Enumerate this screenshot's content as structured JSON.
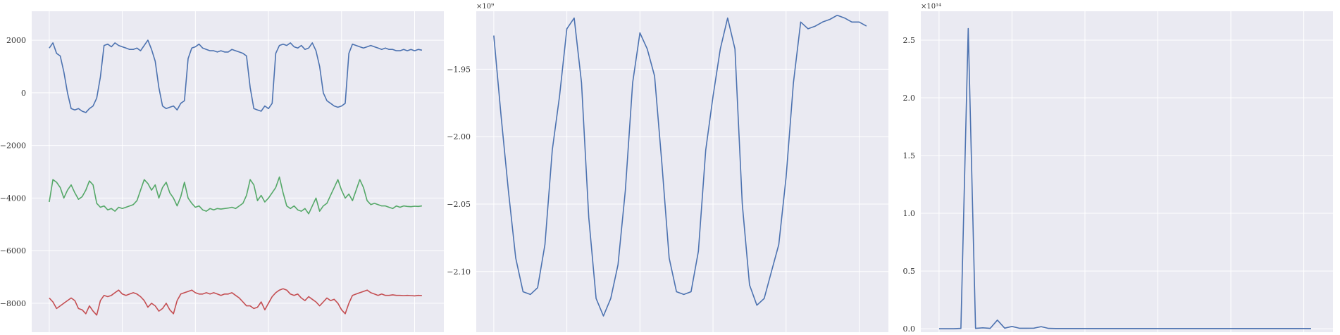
{
  "style": {
    "background": "#ffffff",
    "axes_face": "#eaeaf2",
    "grid_color": "#ffffff",
    "colors": {
      "blue": "#4c72b0",
      "green": "#55a868",
      "red": "#c44e52"
    }
  },
  "chart_data": [
    {
      "type": "line",
      "grid": true,
      "xlim": [
        -24,
        540
      ],
      "ylim": [
        -9100,
        3100
      ],
      "xticks": [
        0,
        100,
        200,
        300,
        400,
        500
      ],
      "yticks": [
        -8000,
        -6000,
        -4000,
        -2000,
        0,
        2000
      ],
      "ytick_labels": [
        "−8000",
        "−6000",
        "−4000",
        "−2000",
        "0",
        "2000"
      ],
      "series": [
        {
          "color": "#4c72b0",
          "x": [
            0,
            5,
            10,
            15,
            20,
            25,
            30,
            35,
            40,
            45,
            50,
            55,
            60,
            65,
            70,
            75,
            80,
            85,
            90,
            95,
            100,
            105,
            110,
            115,
            120,
            125,
            130,
            135,
            140,
            145,
            150,
            155,
            160,
            165,
            170,
            175,
            180,
            185,
            190,
            195,
            200,
            205,
            210,
            215,
            220,
            225,
            230,
            235,
            240,
            245,
            250,
            255,
            260,
            265,
            270,
            275,
            280,
            285,
            290,
            295,
            300,
            305,
            310,
            315,
            320,
            325,
            330,
            335,
            340,
            345,
            350,
            355,
            360,
            365,
            370,
            375,
            380,
            385,
            390,
            395,
            400,
            405,
            410,
            415,
            420,
            425,
            430,
            435,
            440,
            445,
            450,
            455,
            460,
            465,
            470,
            475,
            480,
            485,
            490,
            495,
            500,
            505,
            510
          ],
          "values": [
            1700,
            1900,
            1500,
            1400,
            800,
            0,
            -600,
            -650,
            -600,
            -700,
            -750,
            -600,
            -500,
            -200,
            600,
            1800,
            1850,
            1750,
            1900,
            1800,
            1750,
            1700,
            1650,
            1650,
            1700,
            1600,
            1800,
            2000,
            1650,
            1200,
            200,
            -500,
            -600,
            -550,
            -500,
            -650,
            -400,
            -300,
            1300,
            1700,
            1750,
            1850,
            1700,
            1650,
            1600,
            1600,
            1550,
            1600,
            1550,
            1550,
            1650,
            1600,
            1550,
            1500,
            1400,
            200,
            -600,
            -650,
            -700,
            -500,
            -600,
            -400,
            1500,
            1800,
            1850,
            1800,
            1900,
            1750,
            1700,
            1800,
            1650,
            1700,
            1900,
            1600,
            1000,
            0,
            -300,
            -400,
            -500,
            -550,
            -500,
            -400,
            1500,
            1850,
            1800,
            1750,
            1700,
            1750,
            1800,
            1750,
            1700,
            1650,
            1700,
            1650,
            1650,
            1600,
            1600,
            1650,
            1600,
            1650,
            1600,
            1650,
            1620
          ]
        },
        {
          "color": "#55a868",
          "x": [
            0,
            5,
            10,
            15,
            20,
            25,
            30,
            35,
            40,
            45,
            50,
            55,
            60,
            65,
            70,
            75,
            80,
            85,
            90,
            95,
            100,
            105,
            110,
            115,
            120,
            125,
            130,
            135,
            140,
            145,
            150,
            155,
            160,
            165,
            170,
            175,
            180,
            185,
            190,
            195,
            200,
            205,
            210,
            215,
            220,
            225,
            230,
            235,
            240,
            245,
            250,
            255,
            260,
            265,
            270,
            275,
            280,
            285,
            290,
            295,
            300,
            305,
            310,
            315,
            320,
            325,
            330,
            335,
            340,
            345,
            350,
            355,
            360,
            365,
            370,
            375,
            380,
            385,
            390,
            395,
            400,
            405,
            410,
            415,
            420,
            425,
            430,
            435,
            440,
            445,
            450,
            455,
            460,
            465,
            470,
            475,
            480,
            485,
            490,
            495,
            500,
            505,
            510
          ],
          "values": [
            -4150,
            -3300,
            -3400,
            -3600,
            -4000,
            -3700,
            -3500,
            -3800,
            -4050,
            -3950,
            -3700,
            -3350,
            -3500,
            -4200,
            -4350,
            -4300,
            -4450,
            -4400,
            -4500,
            -4350,
            -4400,
            -4350,
            -4300,
            -4250,
            -4100,
            -3700,
            -3300,
            -3450,
            -3700,
            -3500,
            -4000,
            -3600,
            -3400,
            -3800,
            -4000,
            -4300,
            -3950,
            -3400,
            -4000,
            -4200,
            -4350,
            -4300,
            -4450,
            -4500,
            -4400,
            -4450,
            -4400,
            -4420,
            -4400,
            -4380,
            -4350,
            -4400,
            -4300,
            -4200,
            -3900,
            -3300,
            -3500,
            -4100,
            -3900,
            -4150,
            -4000,
            -3800,
            -3600,
            -3200,
            -3800,
            -4300,
            -4400,
            -4300,
            -4450,
            -4500,
            -4400,
            -4600,
            -4300,
            -4000,
            -4500,
            -4300,
            -4200,
            -3900,
            -3600,
            -3300,
            -3700,
            -4000,
            -3850,
            -4100,
            -3700,
            -3300,
            -3600,
            -4100,
            -4250,
            -4200,
            -4250,
            -4300,
            -4300,
            -4350,
            -4400,
            -4300,
            -4350,
            -4300,
            -4320,
            -4330,
            -4310,
            -4320,
            -4300
          ]
        },
        {
          "color": "#c44e52",
          "x": [
            0,
            5,
            10,
            15,
            20,
            25,
            30,
            35,
            40,
            45,
            50,
            55,
            60,
            65,
            70,
            75,
            80,
            85,
            90,
            95,
            100,
            105,
            110,
            115,
            120,
            125,
            130,
            135,
            140,
            145,
            150,
            155,
            160,
            165,
            170,
            175,
            180,
            185,
            190,
            195,
            200,
            205,
            210,
            215,
            220,
            225,
            230,
            235,
            240,
            245,
            250,
            255,
            260,
            265,
            270,
            275,
            280,
            285,
            290,
            295,
            300,
            305,
            310,
            315,
            320,
            325,
            330,
            335,
            340,
            345,
            350,
            355,
            360,
            365,
            370,
            375,
            380,
            385,
            390,
            395,
            400,
            405,
            410,
            415,
            420,
            425,
            430,
            435,
            440,
            445,
            450,
            455,
            460,
            465,
            470,
            475,
            480,
            485,
            490,
            495,
            500,
            505,
            510
          ],
          "values": [
            -7800,
            -7950,
            -8200,
            -8100,
            -8000,
            -7900,
            -7800,
            -7900,
            -8200,
            -8250,
            -8400,
            -8100,
            -8300,
            -8450,
            -7900,
            -7700,
            -7750,
            -7700,
            -7600,
            -7500,
            -7650,
            -7700,
            -7650,
            -7600,
            -7650,
            -7750,
            -7900,
            -8150,
            -8000,
            -8100,
            -8300,
            -8200,
            -8000,
            -8250,
            -8400,
            -7900,
            -7650,
            -7600,
            -7550,
            -7500,
            -7600,
            -7650,
            -7650,
            -7600,
            -7650,
            -7600,
            -7650,
            -7700,
            -7650,
            -7650,
            -7600,
            -7700,
            -7800,
            -7950,
            -8100,
            -8100,
            -8200,
            -8150,
            -7950,
            -8250,
            -8000,
            -7750,
            -7600,
            -7500,
            -7450,
            -7500,
            -7650,
            -7700,
            -7650,
            -7800,
            -7900,
            -7750,
            -7850,
            -7950,
            -8100,
            -7950,
            -7800,
            -7900,
            -7850,
            -8000,
            -8250,
            -8400,
            -8000,
            -7700,
            -7650,
            -7600,
            -7550,
            -7500,
            -7600,
            -7650,
            -7700,
            -7650,
            -7700,
            -7700,
            -7680,
            -7700,
            -7700,
            -7710,
            -7700,
            -7710,
            -7720,
            -7700,
            -7710
          ]
        }
      ]
    },
    {
      "type": "line",
      "grid": true,
      "offset_text": "×10⁹",
      "xlim": [
        -24,
        540
      ],
      "ylim": [
        -2.145,
        -1.907
      ],
      "xticks": [
        0,
        100,
        200,
        300,
        400,
        500
      ],
      "yticks": [
        -2.1,
        -2.05,
        -2.0,
        -1.95
      ],
      "ytick_labels": [
        "−2.10",
        "−2.05",
        "−2.00",
        "−1.95"
      ],
      "series": [
        {
          "color": "#4c72b0",
          "x": [
            0,
            10,
            20,
            30,
            40,
            50,
            60,
            70,
            80,
            90,
            100,
            110,
            120,
            130,
            140,
            150,
            160,
            170,
            180,
            190,
            200,
            210,
            220,
            230,
            240,
            250,
            260,
            270,
            280,
            290,
            300,
            310,
            320,
            330,
            340,
            350,
            360,
            370,
            380,
            390,
            400,
            410,
            420,
            430,
            440,
            450,
            460,
            470,
            480,
            490,
            500,
            510
          ],
          "values": [
            -1.925,
            -1.985,
            -2.04,
            -2.09,
            -2.115,
            -2.117,
            -2.112,
            -2.08,
            -2.01,
            -1.97,
            -1.92,
            -1.912,
            -1.96,
            -2.06,
            -2.12,
            -2.133,
            -2.12,
            -2.095,
            -2.04,
            -1.96,
            -1.923,
            -1.935,
            -1.955,
            -2.02,
            -2.09,
            -2.115,
            -2.117,
            -2.115,
            -2.085,
            -2.01,
            -1.97,
            -1.935,
            -1.912,
            -1.935,
            -2.05,
            -2.11,
            -2.125,
            -2.12,
            -2.1,
            -2.08,
            -2.03,
            -1.96,
            -1.915,
            -1.92,
            -1.918,
            -1.915,
            -1.913,
            -1.91,
            -1.912,
            -1.915,
            -1.915,
            -1.918
          ]
        }
      ]
    },
    {
      "type": "line",
      "grid": true,
      "offset_text": "×10¹⁴",
      "xlim": [
        -2.5,
        54
      ],
      "ylim": [
        -0.03,
        2.75
      ],
      "xticks": [
        0,
        10,
        20,
        30,
        40,
        50
      ],
      "yticks": [
        0.0,
        0.5,
        1.0,
        1.5,
        2.0,
        2.5
      ],
      "ytick_labels": [
        "0.0",
        "0.5",
        "1.0",
        "1.5",
        "2.0",
        "2.5"
      ],
      "series": [
        {
          "color": "#4c72b0",
          "x": [
            0,
            1,
            2,
            3,
            4,
            5,
            6,
            7,
            8,
            9,
            10,
            11,
            12,
            13,
            14,
            15,
            16,
            17,
            18,
            19,
            20,
            21,
            22,
            23,
            24,
            25,
            26,
            27,
            28,
            29,
            30,
            31,
            32,
            33,
            34,
            35,
            36,
            37,
            38,
            39,
            40,
            41,
            42,
            43,
            44,
            45,
            46,
            47,
            48,
            49,
            50,
            51
          ],
          "values": [
            0.0,
            0.0,
            0.0,
            0.003,
            2.6,
            0.003,
            0.008,
            0.003,
            0.075,
            0.005,
            0.02,
            0.004,
            0.004,
            0.005,
            0.018,
            0.003,
            0.002,
            0.002,
            0.002,
            0.002,
            0.002,
            0.002,
            0.002,
            0.002,
            0.002,
            0.002,
            0.002,
            0.002,
            0.002,
            0.002,
            0.002,
            0.002,
            0.002,
            0.002,
            0.002,
            0.002,
            0.002,
            0.002,
            0.002,
            0.002,
            0.002,
            0.002,
            0.002,
            0.002,
            0.002,
            0.002,
            0.002,
            0.002,
            0.002,
            0.002,
            0.002,
            0.002
          ]
        }
      ]
    }
  ]
}
